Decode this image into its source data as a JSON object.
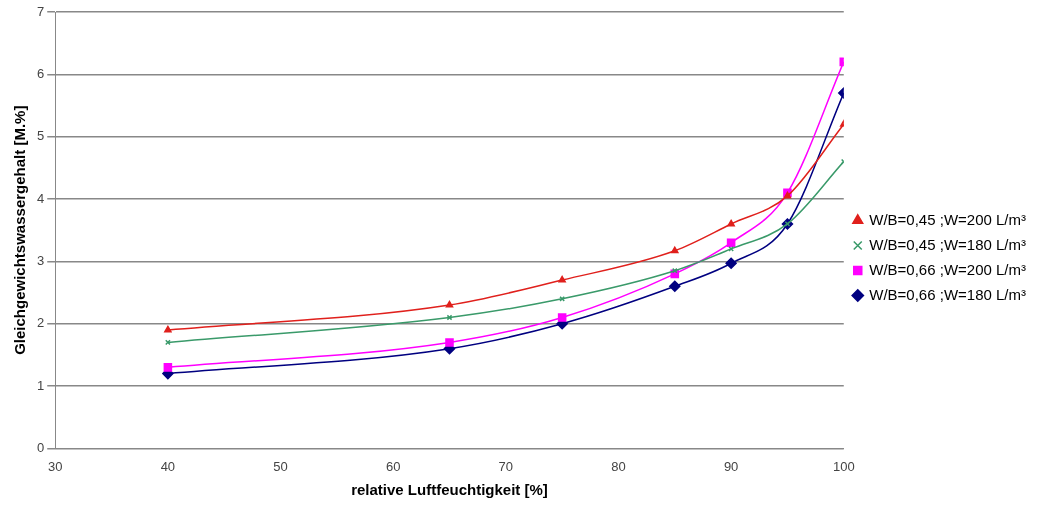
{
  "chart_data": {
    "type": "line",
    "xlabel": "relative Luftfeuchtigkeit [%]",
    "ylabel": "Gleichgewichtswassergehalt [M.%]",
    "x": [
      40,
      65,
      75,
      85,
      90,
      95,
      100
    ],
    "series": [
      {
        "name": "W/B=0,45 ;W=200 L/m³",
        "color": "#e0201c",
        "marker": "triangle",
        "values": [
          1.9,
          2.3,
          2.7,
          3.17,
          3.6,
          4.05,
          5.2
        ]
      },
      {
        "name": "W/B=0,45 ;W=180 L/m³",
        "color": "#3a9a6a",
        "marker": "cross",
        "values": [
          1.7,
          2.1,
          2.4,
          2.85,
          3.2,
          3.6,
          4.6
        ]
      },
      {
        "name": "W/B=0,66 ;W=200 L/m³",
        "color": "#ff00ff",
        "marker": "square",
        "values": [
          1.3,
          1.7,
          2.1,
          2.8,
          3.3,
          4.1,
          6.2
        ]
      },
      {
        "name": "W/B=0,66 ;W=180 L/m³",
        "color": "#000080",
        "marker": "diamond",
        "values": [
          1.2,
          1.6,
          2.0,
          2.6,
          2.97,
          3.6,
          5.7
        ]
      }
    ],
    "xlim": [
      30,
      100
    ],
    "xticks": [
      30,
      40,
      50,
      60,
      70,
      80,
      90,
      100
    ],
    "ylim": [
      0,
      7
    ],
    "yticks": [
      0,
      1,
      2,
      3,
      4,
      5,
      6,
      7
    ],
    "grid": "y",
    "legend": "right",
    "line_style": "solid"
  }
}
